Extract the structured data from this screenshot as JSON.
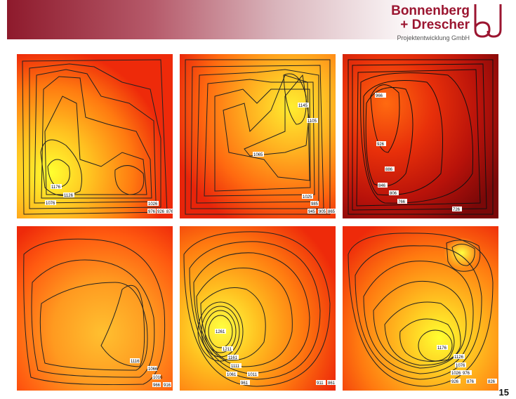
{
  "header": {
    "brand_line1": "Bonnenberg",
    "brand_line2": "+ Drescher",
    "brand_sub": "Projektentwicklung GmbH",
    "logo_letters": "bd"
  },
  "panels": [
    {
      "labels": [
        "1176",
        "1126",
        "1076",
        "1026",
        "976",
        "926",
        "876"
      ]
    },
    {
      "labels": [
        "1145",
        "1105",
        "1065",
        "1025",
        "985",
        "945",
        "905",
        "865"
      ]
    },
    {
      "labels": [
        "966",
        "926",
        "886",
        "846",
        "806",
        "766",
        "726"
      ]
    },
    {
      "labels": [
        "1116",
        "1066",
        "1016",
        "966",
        "916"
      ]
    },
    {
      "labels": [
        "1261",
        "1211",
        "1161",
        "1111",
        "1061",
        "1011",
        "961",
        "911",
        "861"
      ]
    },
    {
      "labels": [
        "1176",
        "1126",
        "1076",
        "1026",
        "976",
        "926",
        "876",
        "826"
      ]
    }
  ],
  "page_number": "15",
  "colors": {
    "banner": "#8e1a2c",
    "brand": "#9b1530"
  }
}
